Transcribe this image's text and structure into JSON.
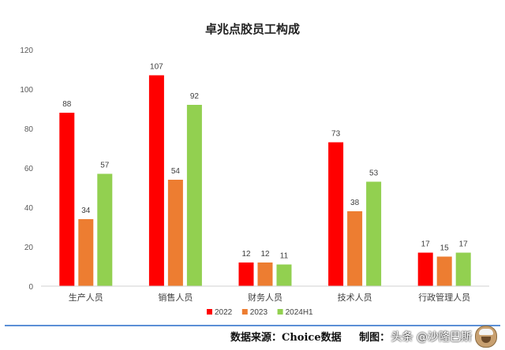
{
  "chart_data": {
    "type": "bar",
    "title": "卓兆点胶员工构成",
    "categories": [
      "生产人员",
      "销售人员",
      "财务人员",
      "技术人员",
      "行政管理人员"
    ],
    "series": [
      {
        "name": "2022",
        "values": [
          88,
          107,
          12,
          73,
          17
        ],
        "color": "#ff0000"
      },
      {
        "name": "2023",
        "values": [
          34,
          54,
          12,
          38,
          15
        ],
        "color": "#ed7d31"
      },
      {
        "name": "2024H1",
        "values": [
          57,
          92,
          11,
          53,
          17
        ],
        "color": "#92d050"
      }
    ],
    "ylim": [
      0,
      120
    ],
    "yticks": [
      0,
      20,
      40,
      60,
      80,
      100,
      120
    ],
    "grid": false,
    "legend": "bottom-center",
    "data_labels": true
  },
  "footer": {
    "source": "数据来源：Choice数据",
    "maker": "制图：",
    "watermark": "头条 @沙隆巴斯"
  }
}
